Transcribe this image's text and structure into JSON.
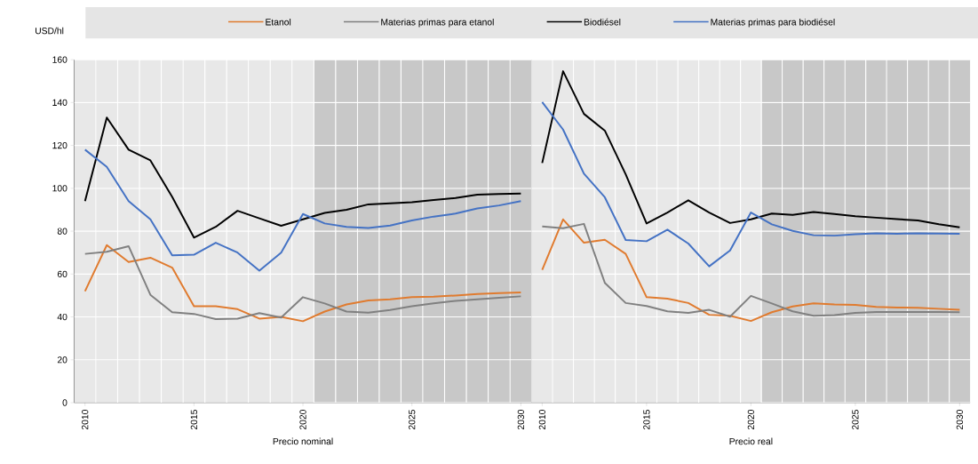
{
  "chart_data": [
    {
      "type": "line",
      "xlabel": "Precio nominal",
      "ylabel": "USD/hl",
      "legend": "top",
      "grid": true,
      "x": [
        2010,
        2011,
        2012,
        2013,
        2014,
        2015,
        2016,
        2017,
        2018,
        2019,
        2020,
        2021,
        2022,
        2023,
        2024,
        2025,
        2026,
        2027,
        2028,
        2029,
        2030
      ],
      "xlim": [
        2009.5,
        2030.5
      ],
      "xticks": [
        2010,
        2015,
        2020,
        2025,
        2030
      ],
      "ylim": [
        0,
        160
      ],
      "yticks": [
        0,
        20,
        40,
        60,
        80,
        100,
        120,
        140,
        160
      ],
      "bands": [
        {
          "axis": "x",
          "from": 2020.5,
          "to": 2030.5,
          "color": "#c8c8c8"
        }
      ],
      "series": [
        {
          "name": "Etanol",
          "color": "#e07b2f",
          "values": [
            52,
            73.5,
            65.6,
            67.6,
            63,
            45,
            45,
            43.6,
            39.2,
            40,
            38,
            42.5,
            45.8,
            47.7,
            48.2,
            49.2,
            49.4,
            50,
            50.7,
            51.1,
            51.4
          ]
        },
        {
          "name": "Materias primas para etanol",
          "color": "#808080",
          "values": [
            69.4,
            70.4,
            73,
            50.3,
            42.2,
            41.4,
            39,
            39.2,
            41.8,
            39.7,
            49.2,
            46.3,
            42.5,
            42,
            43.2,
            45,
            46.3,
            47.5,
            48.2,
            48.9,
            49.6
          ]
        },
        {
          "name": "Biodiésel",
          "color": "#000000",
          "values": [
            94,
            133,
            118,
            113,
            96,
            77,
            82,
            89.5,
            86,
            82.5,
            85.5,
            88.5,
            90,
            92.5,
            93,
            93.5,
            94.5,
            95.5,
            97,
            97.3,
            97.5
          ]
        },
        {
          "name": "Materias primas para biodiésel",
          "color": "#4472c4",
          "values": [
            118,
            110,
            94,
            85.5,
            68.7,
            69,
            74.6,
            70,
            61.6,
            70,
            88,
            83.6,
            82,
            81.5,
            82.6,
            85,
            86.8,
            88.2,
            90.6,
            92,
            94
          ]
        }
      ]
    },
    {
      "type": "line",
      "xlabel": "Precio real",
      "grid": true,
      "tick_labels": "x",
      "x": [
        2010,
        2011,
        2012,
        2013,
        2014,
        2015,
        2016,
        2017,
        2018,
        2019,
        2020,
        2021,
        2022,
        2023,
        2024,
        2025,
        2026,
        2027,
        2028,
        2029,
        2030
      ],
      "xlim": [
        2009.5,
        2030.5
      ],
      "xticks": [
        2010,
        2015,
        2020,
        2025,
        2030
      ],
      "ylim": [
        0,
        160
      ],
      "yticks": [
        0,
        20,
        40,
        60,
        80,
        100,
        120,
        140,
        160
      ],
      "bands": [
        {
          "axis": "x",
          "from": 2020.5,
          "to": 2030.5,
          "color": "#c8c8c8"
        }
      ],
      "series": [
        {
          "color": "#e07b2f",
          "values": [
            61.9,
            85.5,
            74.6,
            76,
            69.4,
            49.2,
            48.5,
            46.5,
            41,
            40.5,
            38.1,
            42.2,
            44.9,
            46.3,
            45.8,
            45.6,
            44.7,
            44.4,
            44.3,
            43.8,
            43.3
          ]
        },
        {
          "color": "#808080",
          "values": [
            82.2,
            81.4,
            83.4,
            55.9,
            46.5,
            45.1,
            42.6,
            41.9,
            43.3,
            40.1,
            49.8,
            46.3,
            42.6,
            40.5,
            40.8,
            41.9,
            42.3,
            42.3,
            42.3,
            42.3,
            42.2
          ]
        },
        {
          "color": "#000000",
          "values": [
            111.8,
            154.6,
            134.7,
            126.9,
            106.5,
            83.6,
            88.7,
            94.4,
            88.7,
            83.8,
            85.5,
            88.2,
            87.6,
            88.9,
            88,
            87,
            86.3,
            85.6,
            85,
            83.2,
            81.8
          ]
        },
        {
          "color": "#4472c4",
          "values": [
            140.2,
            127.4,
            106.8,
            95.8,
            75.9,
            75.3,
            80.7,
            74.2,
            63.6,
            71,
            88.7,
            83.2,
            80.1,
            78.1,
            77.9,
            78.6,
            79,
            78.8,
            79,
            78.9,
            78.8
          ]
        }
      ]
    }
  ]
}
